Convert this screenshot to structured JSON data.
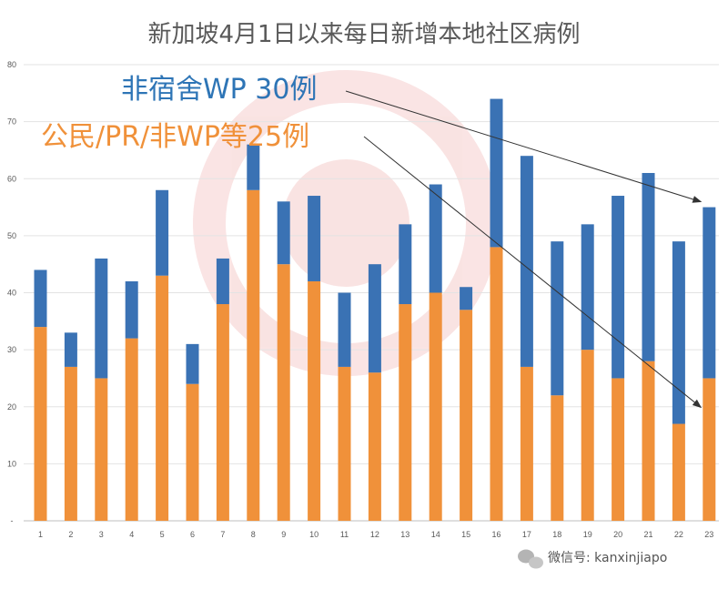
{
  "chart_data": {
    "type": "bar",
    "stacked": true,
    "title": "新加坡4月1日以来每日新增本地社区病例",
    "categories": [
      "1",
      "2",
      "3",
      "4",
      "5",
      "6",
      "7",
      "8",
      "9",
      "10",
      "11",
      "12",
      "13",
      "14",
      "15",
      "16",
      "17",
      "18",
      "19",
      "20",
      "21",
      "22",
      "23"
    ],
    "series": [
      {
        "name": "公民/PR/非WP",
        "color": "#f0913a",
        "values": [
          34,
          27,
          25,
          32,
          43,
          24,
          38,
          58,
          45,
          42,
          27,
          26,
          38,
          40,
          37,
          48,
          27,
          22,
          30,
          25,
          28,
          17,
          25
        ]
      },
      {
        "name": "非宿舍WP",
        "color": "#3a72b4",
        "values": [
          10,
          6,
          21,
          10,
          15,
          7,
          8,
          8,
          11,
          15,
          13,
          19,
          14,
          19,
          4,
          26,
          37,
          27,
          22,
          32,
          33,
          32,
          30
        ]
      }
    ],
    "ylim": [
      0,
      80
    ],
    "yticks": [
      0,
      10,
      20,
      30,
      40,
      50,
      60,
      70,
      80
    ],
    "ytick_labels": [
      "-",
      "10",
      "20",
      "30",
      "40",
      "50",
      "60",
      "70",
      "80"
    ],
    "grid": true,
    "annotations": [
      {
        "text": "非宿舍WP 30例",
        "color": "#2e75b6",
        "points_to_category": "23",
        "points_to_value": 55
      },
      {
        "text": "公民/PR/非WP等25例",
        "color": "#f0913a",
        "points_to_category": "23",
        "points_to_value": 25
      }
    ]
  },
  "watermark": {
    "text": "微信号: kanxinjiapo"
  }
}
